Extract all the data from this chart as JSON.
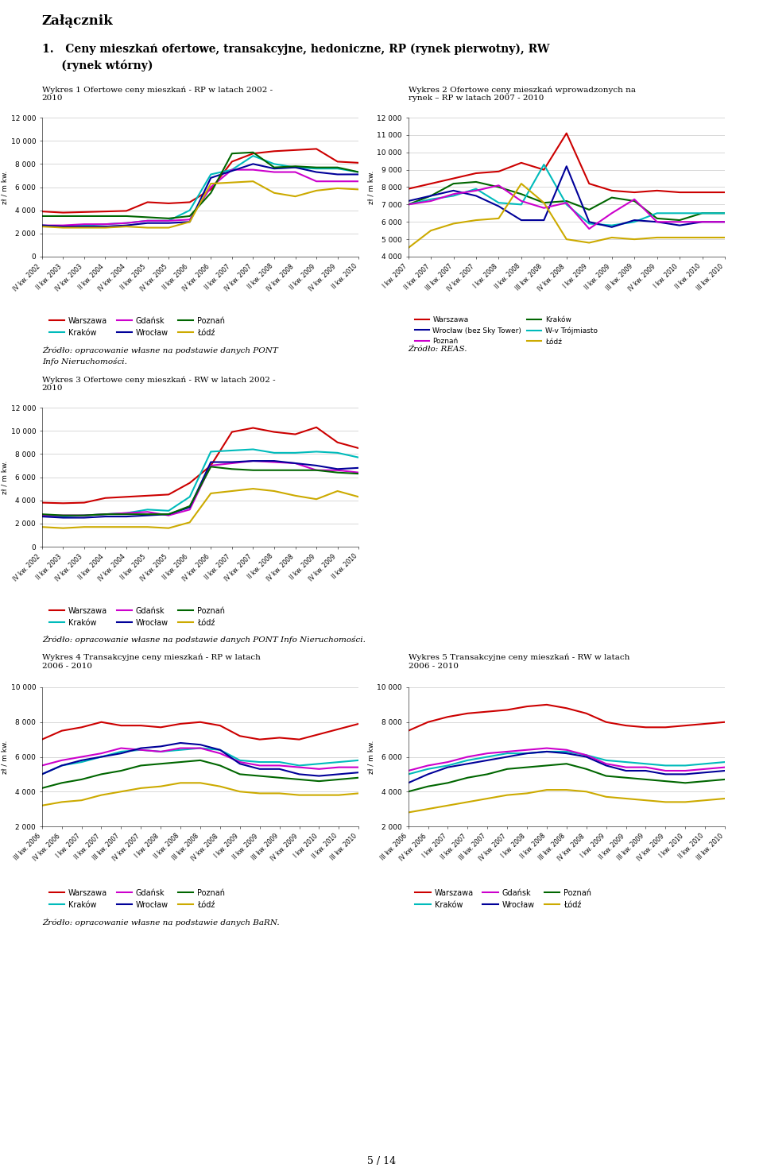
{
  "background": "#ffffff",
  "page_title": "Załącznik",
  "section_title_line1": "1.   Ceny mieszkań ofertowe, transakcyjne, hedoniczne, RP (rynek pierwotny), RW",
  "section_title_line2": "     (rynek wtórny)",
  "chart1_title": "Wykres 1 Ofertowe ceny mieszkań - RP w latach 2002 -\n2010",
  "chart1_ylabel": "zł / m kw.",
  "chart1_ylim": [
    0,
    12000
  ],
  "chart1_yticks": [
    0,
    2000,
    4000,
    6000,
    8000,
    10000,
    12000
  ],
  "chart1_xticks": [
    "IV kw. 2002",
    "II kw. 2003",
    "IV kw. 2003",
    "II kw. 2004",
    "IV kw. 2004",
    "II kw. 2005",
    "IV kw. 2005",
    "II kw. 2006",
    "IV kw. 2006",
    "II kw. 2007",
    "IV kw. 2007",
    "II kw. 2008",
    "IV kw. 2008",
    "II kw. 2009",
    "IV kw. 2009",
    "II kw. 2010"
  ],
  "chart1_warszawa": [
    3900,
    3800,
    3850,
    3900,
    3950,
    4700,
    4600,
    4700,
    5800,
    8200,
    8900,
    9100,
    9200,
    9300,
    8200,
    8100
  ],
  "chart1_krakow": [
    2700,
    2600,
    2700,
    2800,
    2900,
    3100,
    3100,
    4000,
    7100,
    7500,
    8700,
    8000,
    7700,
    7600,
    7600,
    7300
  ],
  "chart1_gdansk": [
    2700,
    2700,
    2800,
    2800,
    2900,
    3100,
    3100,
    3200,
    6000,
    7500,
    7500,
    7300,
    7300,
    6500,
    6500,
    6500
  ],
  "chart1_wroclaw": [
    2700,
    2600,
    2600,
    2600,
    2700,
    2900,
    2900,
    3000,
    6800,
    7400,
    8000,
    7600,
    7700,
    7300,
    7100,
    7100
  ],
  "chart1_poznan": [
    3500,
    3500,
    3500,
    3500,
    3500,
    3400,
    3300,
    3500,
    5500,
    8900,
    9000,
    7700,
    7800,
    7700,
    7700,
    7300
  ],
  "chart1_lodz": [
    2600,
    2500,
    2500,
    2500,
    2600,
    2500,
    2500,
    3000,
    6300,
    6400,
    6500,
    5500,
    5200,
    5700,
    5900,
    5800
  ],
  "chart1_source_line1": "Źródło: opracowanie własne na podstawie danych PONT",
  "chart1_source_line2": "Info Nieruchomości.",
  "chart2_title": "Wykres 2 Ofertowe ceny mieszkań wprowadzonych na\nrynek – RP w latach 2007 - 2010",
  "chart2_ylabel": "zł / m kw.",
  "chart2_ylim": [
    4000,
    12000
  ],
  "chart2_yticks": [
    4000,
    5000,
    6000,
    7000,
    8000,
    9000,
    10000,
    11000,
    12000
  ],
  "chart2_xticks": [
    "I kw. 2007",
    "II kw. 2007",
    "III kw. 2007",
    "IV kw. 2007",
    "I kw. 2008",
    "II kw. 2008",
    "III kw. 2008",
    "IV kw. 2008",
    "I kw. 2009",
    "II kw. 2009",
    "III kw. 2009",
    "IV kw. 2009",
    "I kw. 2010",
    "II kw. 2010",
    "III kw. 2010"
  ],
  "chart2_warszawa": [
    7900,
    8200,
    8500,
    8800,
    8900,
    9400,
    9000,
    11100,
    8200,
    7800,
    7700,
    7800,
    7700,
    7700,
    7700
  ],
  "chart2_krakow": [
    7000,
    7500,
    8200,
    8300,
    8000,
    7600,
    7100,
    7200,
    6700,
    7400,
    7200,
    6200,
    6100,
    6500,
    6500
  ],
  "chart2_trojmiasto": [
    7000,
    7300,
    7500,
    7900,
    7100,
    7000,
    9300,
    7000,
    5900,
    5800,
    6000,
    6500,
    6500,
    6500,
    6500
  ],
  "chart2_wroclaw": [
    7200,
    7500,
    7800,
    7500,
    6900,
    6100,
    6100,
    9200,
    6000,
    5700,
    6100,
    6000,
    5800,
    6000,
    6000
  ],
  "chart2_poznan": [
    7000,
    7200,
    7600,
    7800,
    8100,
    7200,
    6800,
    7100,
    5600,
    6500,
    7300,
    6000,
    6000,
    6000,
    6000
  ],
  "chart2_lodz": [
    4500,
    5500,
    5900,
    6100,
    6200,
    8200,
    7100,
    5000,
    4800,
    5100,
    5000,
    5100,
    5100,
    5100,
    5100
  ],
  "chart2_source": "Źródło: REAS.",
  "chart3_title": "Wykres 3 Ofertowe ceny mieszkań - RW w latach 2002 -\n2010",
  "chart3_ylabel": "zł / m kw.",
  "chart3_ylim": [
    0,
    12000
  ],
  "chart3_yticks": [
    0,
    2000,
    4000,
    6000,
    8000,
    10000,
    12000
  ],
  "chart3_xticks": [
    "IV kw. 2002",
    "II kw. 2003",
    "IV kw. 2003",
    "II kw. 2004",
    "IV kw. 2004",
    "II kw. 2005",
    "IV kw. 2005",
    "II kw. 2006",
    "IV kw. 2006",
    "II kw. 2007",
    "IV kw. 2007",
    "II kw. 2008",
    "IV kw. 2008",
    "II kw. 2009",
    "IV kw. 2009",
    "II kw. 2010"
  ],
  "chart3_warszawa": [
    3800,
    3750,
    3800,
    4200,
    4300,
    4400,
    4500,
    5500,
    7000,
    9900,
    10250,
    9900,
    9700,
    10300,
    9000,
    8500
  ],
  "chart3_krakow": [
    2700,
    2600,
    2700,
    2800,
    2900,
    3200,
    3100,
    4300,
    8200,
    8300,
    8400,
    8100,
    8100,
    8200,
    8100,
    7700
  ],
  "chart3_gdansk": [
    2700,
    2700,
    2700,
    2800,
    2900,
    3000,
    2700,
    3200,
    7000,
    7200,
    7400,
    7300,
    7200,
    6600,
    6600,
    6400
  ],
  "chart3_wroclaw": [
    2600,
    2500,
    2500,
    2600,
    2600,
    2700,
    2800,
    3400,
    7300,
    7300,
    7400,
    7400,
    7200,
    7000,
    6700,
    6800
  ],
  "chart3_poznan": [
    2800,
    2700,
    2700,
    2800,
    2800,
    2800,
    2800,
    3500,
    6900,
    6700,
    6600,
    6600,
    6600,
    6600,
    6400,
    6300
  ],
  "chart3_lodz": [
    1700,
    1600,
    1700,
    1700,
    1700,
    1700,
    1600,
    2100,
    4600,
    4800,
    5000,
    4800,
    4400,
    4100,
    4800,
    4300
  ],
  "chart3_source": "Źródło: opracowanie własne na podstawie danych PONT Info Nieruchomości.",
  "chart4_title": "Wykres 4 Transakcyjne ceny mieszkań - RP w latach\n2006 - 2010",
  "chart4_ylabel": "zł / m kw.",
  "chart4_ylim": [
    2000,
    10000
  ],
  "chart4_yticks": [
    2000,
    4000,
    6000,
    8000,
    10000
  ],
  "chart4_xticks": [
    "III kw. 2006",
    "IV kw. 2006",
    "I kw. 2007",
    "II kw. 2007",
    "III kw. 2007",
    "IV kw. 2007",
    "I kw. 2008",
    "II kw. 2008",
    "III kw. 2008",
    "IV kw. 2008",
    "I kw. 2009",
    "II kw. 2009",
    "III kw. 2009",
    "IV kw. 2009",
    "I kw. 2010",
    "II kw. 2010",
    "III kw. 2010"
  ],
  "chart4_warszawa": [
    7000,
    7500,
    7700,
    8000,
    7800,
    7800,
    7700,
    7900,
    8000,
    7800,
    7200,
    7000,
    7100,
    7000,
    7300,
    7600,
    7900
  ],
  "chart4_krakow": [
    5000,
    5500,
    5700,
    6000,
    6300,
    6400,
    6300,
    6400,
    6500,
    6400,
    5800,
    5700,
    5700,
    5500,
    5600,
    5700,
    5800
  ],
  "chart4_gdansk": [
    5500,
    5800,
    6000,
    6200,
    6500,
    6400,
    6300,
    6500,
    6500,
    6200,
    5700,
    5500,
    5500,
    5400,
    5300,
    5400,
    5400
  ],
  "chart4_wroclaw": [
    5000,
    5500,
    5800,
    6000,
    6200,
    6500,
    6600,
    6800,
    6700,
    6400,
    5600,
    5300,
    5300,
    5000,
    4900,
    5000,
    5100
  ],
  "chart4_poznan": [
    4200,
    4500,
    4700,
    5000,
    5200,
    5500,
    5600,
    5700,
    5800,
    5500,
    5000,
    4900,
    4800,
    4700,
    4600,
    4700,
    4800
  ],
  "chart4_lodz": [
    3200,
    3400,
    3500,
    3800,
    4000,
    4200,
    4300,
    4500,
    4500,
    4300,
    4000,
    3900,
    3900,
    3800,
    3800,
    3800,
    3900
  ],
  "chart4_source": "Źródło: opracowanie własne na podstawie danych BaRN.",
  "chart5_title": "Wykres 5 Transakcyjne ceny mieszkań - RW w latach\n2006 - 2010",
  "chart5_ylabel": "zł / m kw.",
  "chart5_ylim": [
    2000,
    10000
  ],
  "chart5_yticks": [
    2000,
    4000,
    6000,
    8000,
    10000
  ],
  "chart5_xticks": [
    "III kw. 2006",
    "IV kw. 2006",
    "I kw. 2007",
    "II kw. 2007",
    "III kw. 2007",
    "IV kw. 2007",
    "I kw. 2008",
    "II kw. 2008",
    "III kw. 2008",
    "IV kw. 2008",
    "I kw. 2009",
    "II kw. 2009",
    "III kw. 2009",
    "IV kw. 2009",
    "I kw. 2010",
    "II kw. 2010",
    "III kw. 2010"
  ],
  "chart5_warszawa": [
    7500,
    8000,
    8300,
    8500,
    8600,
    8700,
    8900,
    9000,
    8800,
    8500,
    8000,
    7800,
    7700,
    7700,
    7800,
    7900,
    8000
  ],
  "chart5_krakow": [
    5000,
    5300,
    5500,
    5800,
    6000,
    6200,
    6200,
    6300,
    6300,
    6100,
    5800,
    5700,
    5600,
    5500,
    5500,
    5600,
    5700
  ],
  "chart5_gdansk": [
    5200,
    5500,
    5700,
    6000,
    6200,
    6300,
    6400,
    6500,
    6400,
    6100,
    5600,
    5400,
    5400,
    5200,
    5200,
    5300,
    5400
  ],
  "chart5_wroclaw": [
    4500,
    5000,
    5400,
    5600,
    5800,
    6000,
    6200,
    6300,
    6200,
    6000,
    5500,
    5200,
    5200,
    5000,
    5000,
    5100,
    5200
  ],
  "chart5_poznan": [
    4000,
    4300,
    4500,
    4800,
    5000,
    5300,
    5400,
    5500,
    5600,
    5300,
    4900,
    4800,
    4700,
    4600,
    4500,
    4600,
    4700
  ],
  "chart5_lodz": [
    2800,
    3000,
    3200,
    3400,
    3600,
    3800,
    3900,
    4100,
    4100,
    4000,
    3700,
    3600,
    3500,
    3400,
    3400,
    3500,
    3600
  ],
  "legend_6cities": [
    {
      "label": "Warszawa",
      "color": "#cc0000"
    },
    {
      "label": "Kraków",
      "color": "#00bbbb"
    },
    {
      "label": "Gdańsk",
      "color": "#cc00cc"
    },
    {
      "label": "Wrocław",
      "color": "#000099"
    },
    {
      "label": "Poznań",
      "color": "#006600"
    },
    {
      "label": "Łódź",
      "color": "#ccaa00"
    }
  ],
  "legend_chart2_col1": [
    {
      "label": "Warszawa",
      "color": "#cc0000"
    },
    {
      "label": "Wrocław (bez Sky Tower)",
      "color": "#000099"
    },
    {
      "label": "Poznań",
      "color": "#cc00cc"
    }
  ],
  "legend_chart2_col2": [
    {
      "label": "Kraków",
      "color": "#006600"
    },
    {
      "label": "W-v Trójmiasto",
      "color": "#00bbbb"
    },
    {
      "label": "Łódź",
      "color": "#ccaa00"
    }
  ],
  "page_number": "5 / 14",
  "line_width": 1.5
}
